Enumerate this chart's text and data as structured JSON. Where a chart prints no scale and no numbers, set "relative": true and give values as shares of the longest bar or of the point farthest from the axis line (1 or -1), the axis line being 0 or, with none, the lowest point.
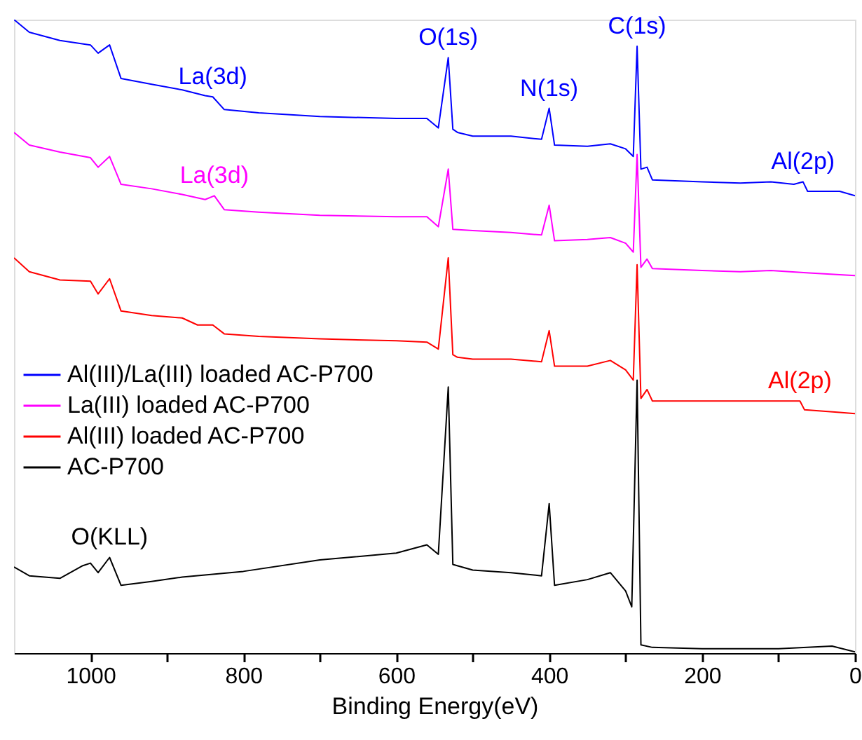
{
  "chart_data": {
    "type": "line",
    "relative": true,
    "xlabel": "Binding Energy(eV)",
    "xlim": [
      1100,
      0
    ],
    "xticks": [
      1000,
      {
        "value": 900,
        "label": null
      },
      800,
      {
        "value": 700,
        "label": null
      },
      600,
      {
        "value": 500,
        "label": null
      },
      400,
      {
        "value": 300,
        "label": null
      },
      200,
      {
        "value": 100,
        "label": null
      },
      0
    ],
    "grid": false,
    "legend": "left",
    "marker": "none",
    "line_style": "solid",
    "series": [
      {
        "name": "Al(III)/La(III) loaded AC-P700",
        "color": "#0000ff",
        "x": [
          1100,
          1080,
          1040,
          1000,
          990,
          975,
          960,
          920,
          880,
          850,
          840,
          825,
          780,
          700,
          600,
          560,
          545,
          532,
          526,
          520,
          500,
          450,
          410,
          400,
          393,
          350,
          320,
          300,
          290,
          285,
          280,
          272,
          265,
          200,
          150,
          110,
          80,
          68,
          62,
          20,
          0
        ],
        "values": [
          1.0,
          0.98,
          0.967,
          0.96,
          0.947,
          0.96,
          0.907,
          0.898,
          0.889,
          0.88,
          0.878,
          0.858,
          0.853,
          0.847,
          0.844,
          0.844,
          0.829,
          0.94,
          0.827,
          0.822,
          0.816,
          0.816,
          0.811,
          0.86,
          0.802,
          0.8,
          0.804,
          0.796,
          0.784,
          0.958,
          0.764,
          0.767,
          0.747,
          0.744,
          0.742,
          0.744,
          0.74,
          0.744,
          0.729,
          0.729,
          0.722
        ]
      },
      {
        "name": "La(III) loaded AC-P700",
        "color": "#ff00ff",
        "x": [
          1100,
          1080,
          1040,
          1000,
          990,
          975,
          960,
          920,
          880,
          850,
          838,
          825,
          780,
          700,
          600,
          560,
          545,
          532,
          526,
          500,
          450,
          410,
          400,
          393,
          350,
          320,
          300,
          290,
          285,
          280,
          272,
          265,
          200,
          150,
          110,
          60,
          0
        ],
        "values": [
          0.822,
          0.802,
          0.791,
          0.782,
          0.767,
          0.784,
          0.74,
          0.733,
          0.724,
          0.716,
          0.722,
          0.7,
          0.696,
          0.691,
          0.689,
          0.689,
          0.673,
          0.764,
          0.669,
          0.667,
          0.664,
          0.66,
          0.707,
          0.651,
          0.653,
          0.656,
          0.647,
          0.633,
          0.787,
          0.609,
          0.622,
          0.607,
          0.604,
          0.602,
          0.604,
          0.6,
          0.596
        ]
      },
      {
        "name": "Al(III) loaded AC-P700",
        "color": "#ff0000",
        "x": [
          1100,
          1080,
          1040,
          1000,
          990,
          975,
          960,
          920,
          880,
          860,
          840,
          825,
          780,
          700,
          600,
          560,
          545,
          532,
          526,
          520,
          500,
          450,
          410,
          400,
          393,
          350,
          320,
          300,
          290,
          285,
          280,
          272,
          265,
          200,
          150,
          80,
          72,
          66,
          20,
          0
        ],
        "values": [
          0.624,
          0.602,
          0.589,
          0.587,
          0.567,
          0.591,
          0.54,
          0.533,
          0.529,
          0.518,
          0.518,
          0.504,
          0.5,
          0.496,
          0.493,
          0.491,
          0.48,
          0.624,
          0.471,
          0.467,
          0.464,
          0.464,
          0.46,
          0.509,
          0.453,
          0.453,
          0.462,
          0.447,
          0.431,
          0.613,
          0.402,
          0.416,
          0.398,
          0.398,
          0.398,
          0.398,
          0.398,
          0.384,
          0.38,
          0.378
        ]
      },
      {
        "name": "AC-P700",
        "color": "#000000",
        "x": [
          1100,
          1080,
          1040,
          1010,
          1000,
          990,
          975,
          960,
          920,
          880,
          800,
          700,
          600,
          560,
          545,
          532,
          526,
          500,
          450,
          410,
          400,
          393,
          350,
          320,
          300,
          292,
          285,
          280,
          265,
          200,
          100,
          30,
          0
        ],
        "values": [
          0.136,
          0.122,
          0.118,
          0.138,
          0.142,
          0.127,
          0.151,
          0.107,
          0.113,
          0.12,
          0.129,
          0.147,
          0.158,
          0.171,
          0.156,
          0.42,
          0.14,
          0.131,
          0.127,
          0.122,
          0.236,
          0.107,
          0.116,
          0.127,
          0.098,
          0.073,
          0.431,
          0.013,
          0.009,
          0.007,
          0.007,
          0.011,
          0.002
        ]
      }
    ],
    "annotations": [
      {
        "text": "O(1s)",
        "x": 532,
        "y": 0.94
      },
      {
        "text": "N(1s)",
        "x": 400,
        "y": 0.86
      },
      {
        "text": "C(1s)",
        "x": 285,
        "y": 0.958
      },
      {
        "text": "La(3d)",
        "x": 840,
        "y": 0.878
      },
      {
        "text": "La(3d)",
        "x": 838,
        "y": 0.722
      },
      {
        "text": "Al(2p)",
        "x": 68,
        "y": 0.744
      },
      {
        "text": "Al(2p)",
        "x": 72,
        "y": 0.398
      },
      {
        "text": "O(KLL)",
        "x": 975,
        "y": 0.151
      }
    ]
  }
}
